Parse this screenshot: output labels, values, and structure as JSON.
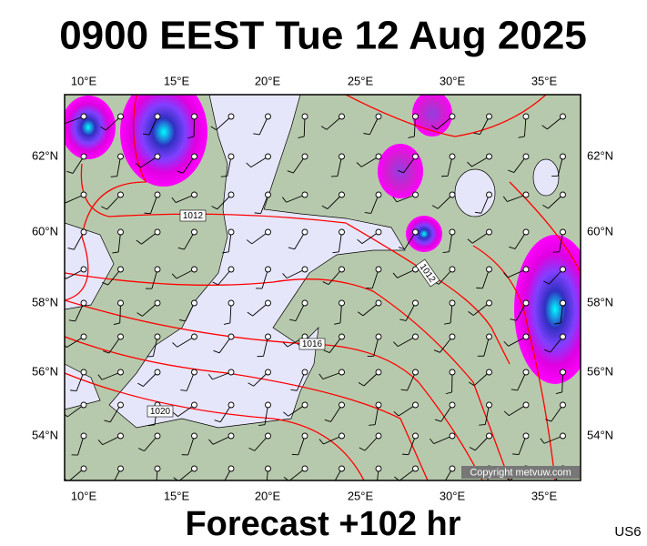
{
  "header": {
    "title": "0900 EEST Tue 12 Aug 2025"
  },
  "axes": {
    "top_lon": [
      "10°E",
      "15°E",
      "20°E",
      "25°E",
      "30°E",
      "35°E"
    ],
    "bottom_lon": [
      "10°E",
      "15°E",
      "20°E",
      "25°E",
      "30°E",
      "35°E"
    ],
    "left_lat": [
      "62°N",
      "60°N",
      "58°N",
      "56°N",
      "54°N"
    ],
    "right_lat": [
      "62°N",
      "60°N",
      "58°N",
      "56°N",
      "54°N"
    ]
  },
  "isobar_labels": [
    "1012",
    "1012",
    "1016",
    "1020"
  ],
  "copyright": "Copyright metvuw.com",
  "footer": {
    "title": "Forecast +102 hr",
    "code": "US6"
  }
}
